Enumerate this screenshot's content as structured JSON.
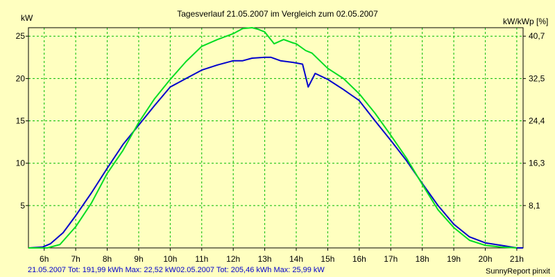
{
  "chart_data": {
    "type": "line",
    "title": "Tagesverlauf 21.05.2007 im Vergleich zum 02.05.2007",
    "ylabel_left": "kW",
    "ylabel_right": "kW/kWp [%]",
    "xlim": [
      5.5,
      21.2
    ],
    "ylim": [
      0,
      26
    ],
    "yticks_left": [
      5,
      10,
      15,
      20,
      25
    ],
    "yticks_right": [
      "8,1",
      "16,3",
      "24,4",
      "32,5",
      "40,7"
    ],
    "x_tick_values": [
      6,
      7,
      8,
      9,
      10,
      11,
      12,
      13,
      14,
      15,
      16,
      17,
      18,
      19,
      20,
      21
    ],
    "x_tick_labels": [
      "6h",
      "7h",
      "8h",
      "9h",
      "10h",
      "11h",
      "12h",
      "13h",
      "14h",
      "15h",
      "16h",
      "17h",
      "18h",
      "19h",
      "20h",
      "21h"
    ],
    "grid": true,
    "series": [
      {
        "name": "21.05.2007",
        "color": "#0000cc",
        "x": [
          5.5,
          5.95,
          6.2,
          6.6,
          7.0,
          7.5,
          8.0,
          8.5,
          9.0,
          9.5,
          10.0,
          10.5,
          11.0,
          11.5,
          12.0,
          12.3,
          12.6,
          13.0,
          13.2,
          13.5,
          13.9,
          14.2,
          14.38,
          14.6,
          15.0,
          15.5,
          16.0,
          16.5,
          17.0,
          17.5,
          18.0,
          18.5,
          19.0,
          19.5,
          20.0,
          20.5,
          21.0,
          21.2
        ],
        "y": [
          0.0,
          0.1,
          0.5,
          1.8,
          3.8,
          6.5,
          9.4,
          12.2,
          14.5,
          16.8,
          19.0,
          20.0,
          21.0,
          21.6,
          22.1,
          22.1,
          22.4,
          22.5,
          22.5,
          22.1,
          21.9,
          21.7,
          19.0,
          20.6,
          19.9,
          18.7,
          17.4,
          15.0,
          12.7,
          10.3,
          7.6,
          5.0,
          2.8,
          1.3,
          0.6,
          0.3,
          0.0,
          0.0
        ]
      },
      {
        "name": "02.05.2007",
        "color": "#00dd22",
        "x": [
          5.5,
          6.1,
          6.5,
          7.0,
          7.5,
          8.0,
          8.5,
          9.0,
          9.5,
          10.0,
          10.5,
          11.0,
          11.5,
          12.0,
          12.3,
          12.6,
          12.8,
          13.0,
          13.3,
          13.6,
          13.9,
          14.0,
          14.3,
          14.5,
          15.0,
          15.5,
          16.0,
          16.5,
          17.0,
          17.5,
          18.0,
          18.5,
          19.0,
          19.5,
          20.0,
          20.5,
          21.0
        ],
        "y": [
          0.0,
          0.0,
          0.4,
          2.5,
          5.3,
          8.8,
          11.5,
          14.8,
          17.6,
          19.9,
          22.0,
          23.8,
          24.6,
          25.3,
          25.9,
          26.0,
          25.8,
          25.5,
          24.1,
          24.6,
          24.2,
          24.1,
          23.3,
          23.0,
          21.2,
          20.0,
          18.2,
          15.9,
          13.3,
          10.6,
          7.5,
          4.5,
          2.4,
          0.9,
          0.3,
          0.1,
          0.0
        ]
      }
    ],
    "footer": {
      "left_text": "21.05.2007 Tot: 191,99 kWh Max: 22,52 kW",
      "mid_text": "02.05.2007 Tot: 205,46 kWh Max: 25,99 kW",
      "right_text": "SunnyReport pinxit"
    }
  },
  "colors": {
    "background": "#ffffc0",
    "grid": "#00bb00",
    "axis": "#000000"
  }
}
